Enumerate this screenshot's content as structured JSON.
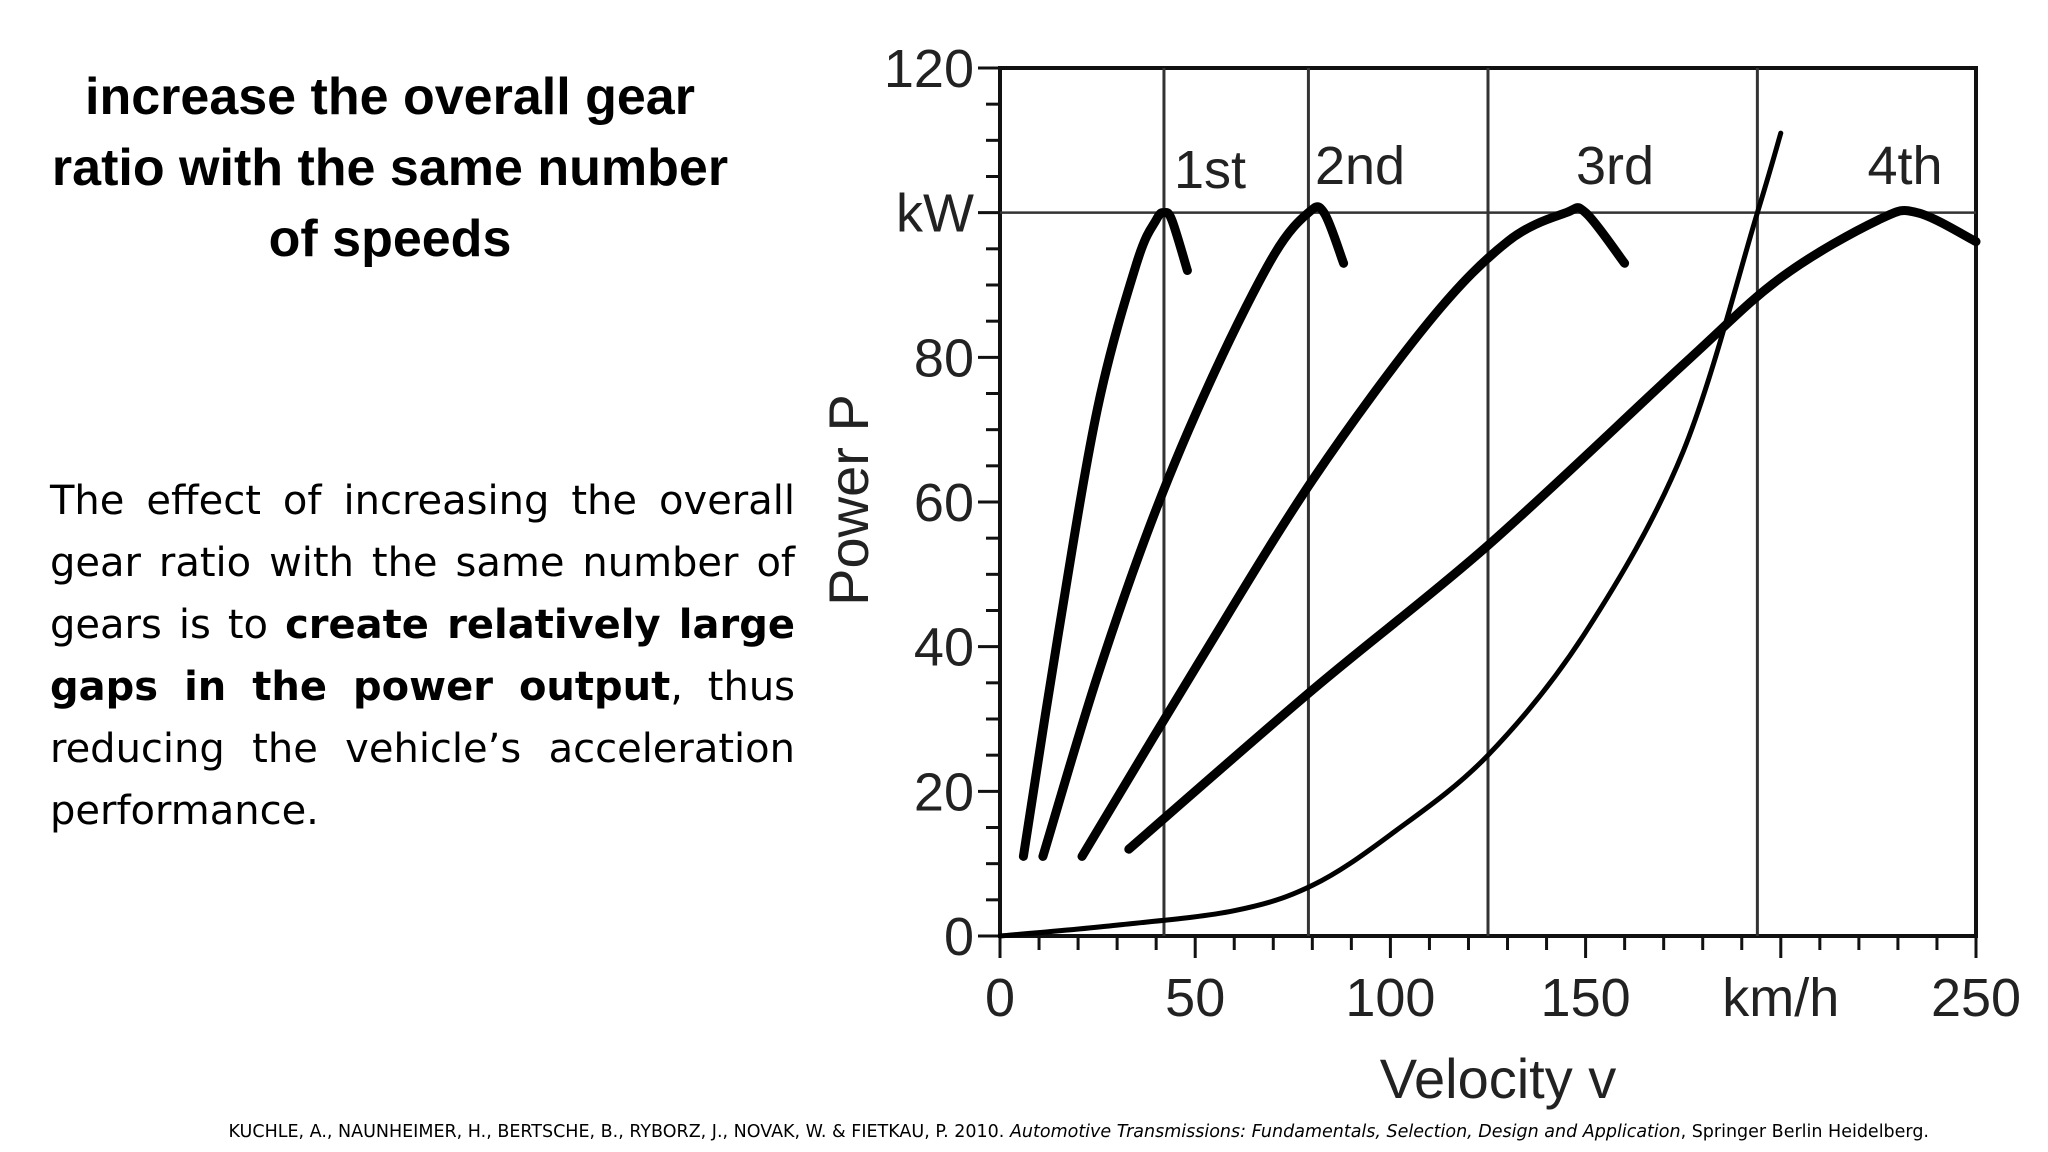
{
  "slide": {
    "title": "increase the overall gear ratio with the same number of speeds",
    "body_plain_1": "The effect of increasing the overall gear ratio with the same number of gears is to ",
    "body_bold": "create relatively large gaps in the power output",
    "body_plain_2": ", thus reducing the vehicle’s acceleration performance.",
    "citation_authors": "KUCHLE, A., NAUNHEIMER, H., BERTSCHE, B., RYBORZ, J., NOVAK, W. & FIETKAU, P. 2010. ",
    "citation_title": "Automotive Transmissions: Fundamentals, Selection, Design and Application",
    "citation_publisher": ", Springer Berlin Heidelberg."
  },
  "chart_data": {
    "type": "line",
    "xlabel": "Velocity v",
    "ylabel": "Power P",
    "xlim": [
      0,
      250
    ],
    "ylim": [
      0,
      120
    ],
    "x_ticks": [
      "0",
      "50",
      "100",
      "150",
      "km/h",
      "250"
    ],
    "y_ticks": [
      "0",
      "20",
      "40",
      "60",
      "80",
      "kW",
      "120"
    ],
    "vertical_lines_x": [
      42,
      79,
      125,
      194
    ],
    "max_power_line_y": 100,
    "series": [
      {
        "name": "1st",
        "x": [
          6,
          15,
          25,
          35,
          40,
          42,
          44,
          48
        ],
        "y": [
          11,
          42,
          73,
          93,
          99,
          100,
          99,
          92
        ]
      },
      {
        "name": "2nd",
        "x": [
          11,
          25,
          40,
          55,
          70,
          79,
          83,
          88
        ],
        "y": [
          11,
          36,
          59,
          78,
          94,
          100,
          100,
          93
        ]
      },
      {
        "name": "3rd",
        "x": [
          21,
          50,
          80,
          110,
          130,
          145,
          150,
          160
        ],
        "y": [
          11,
          37,
          63,
          85,
          96,
          100,
          100,
          93
        ]
      },
      {
        "name": "4th",
        "x": [
          33,
          80,
          125,
          175,
          200,
          225,
          235,
          250
        ],
        "y": [
          12,
          34,
          54,
          79,
          91,
          99,
          100,
          96
        ]
      },
      {
        "name": "",
        "x": [
          0,
          30,
          60,
          80,
          100,
          125,
          150,
          175,
          194,
          200
        ],
        "y": [
          0,
          1.5,
          3.5,
          7,
          14,
          25,
          42,
          67,
          100,
          111
        ]
      }
    ]
  }
}
